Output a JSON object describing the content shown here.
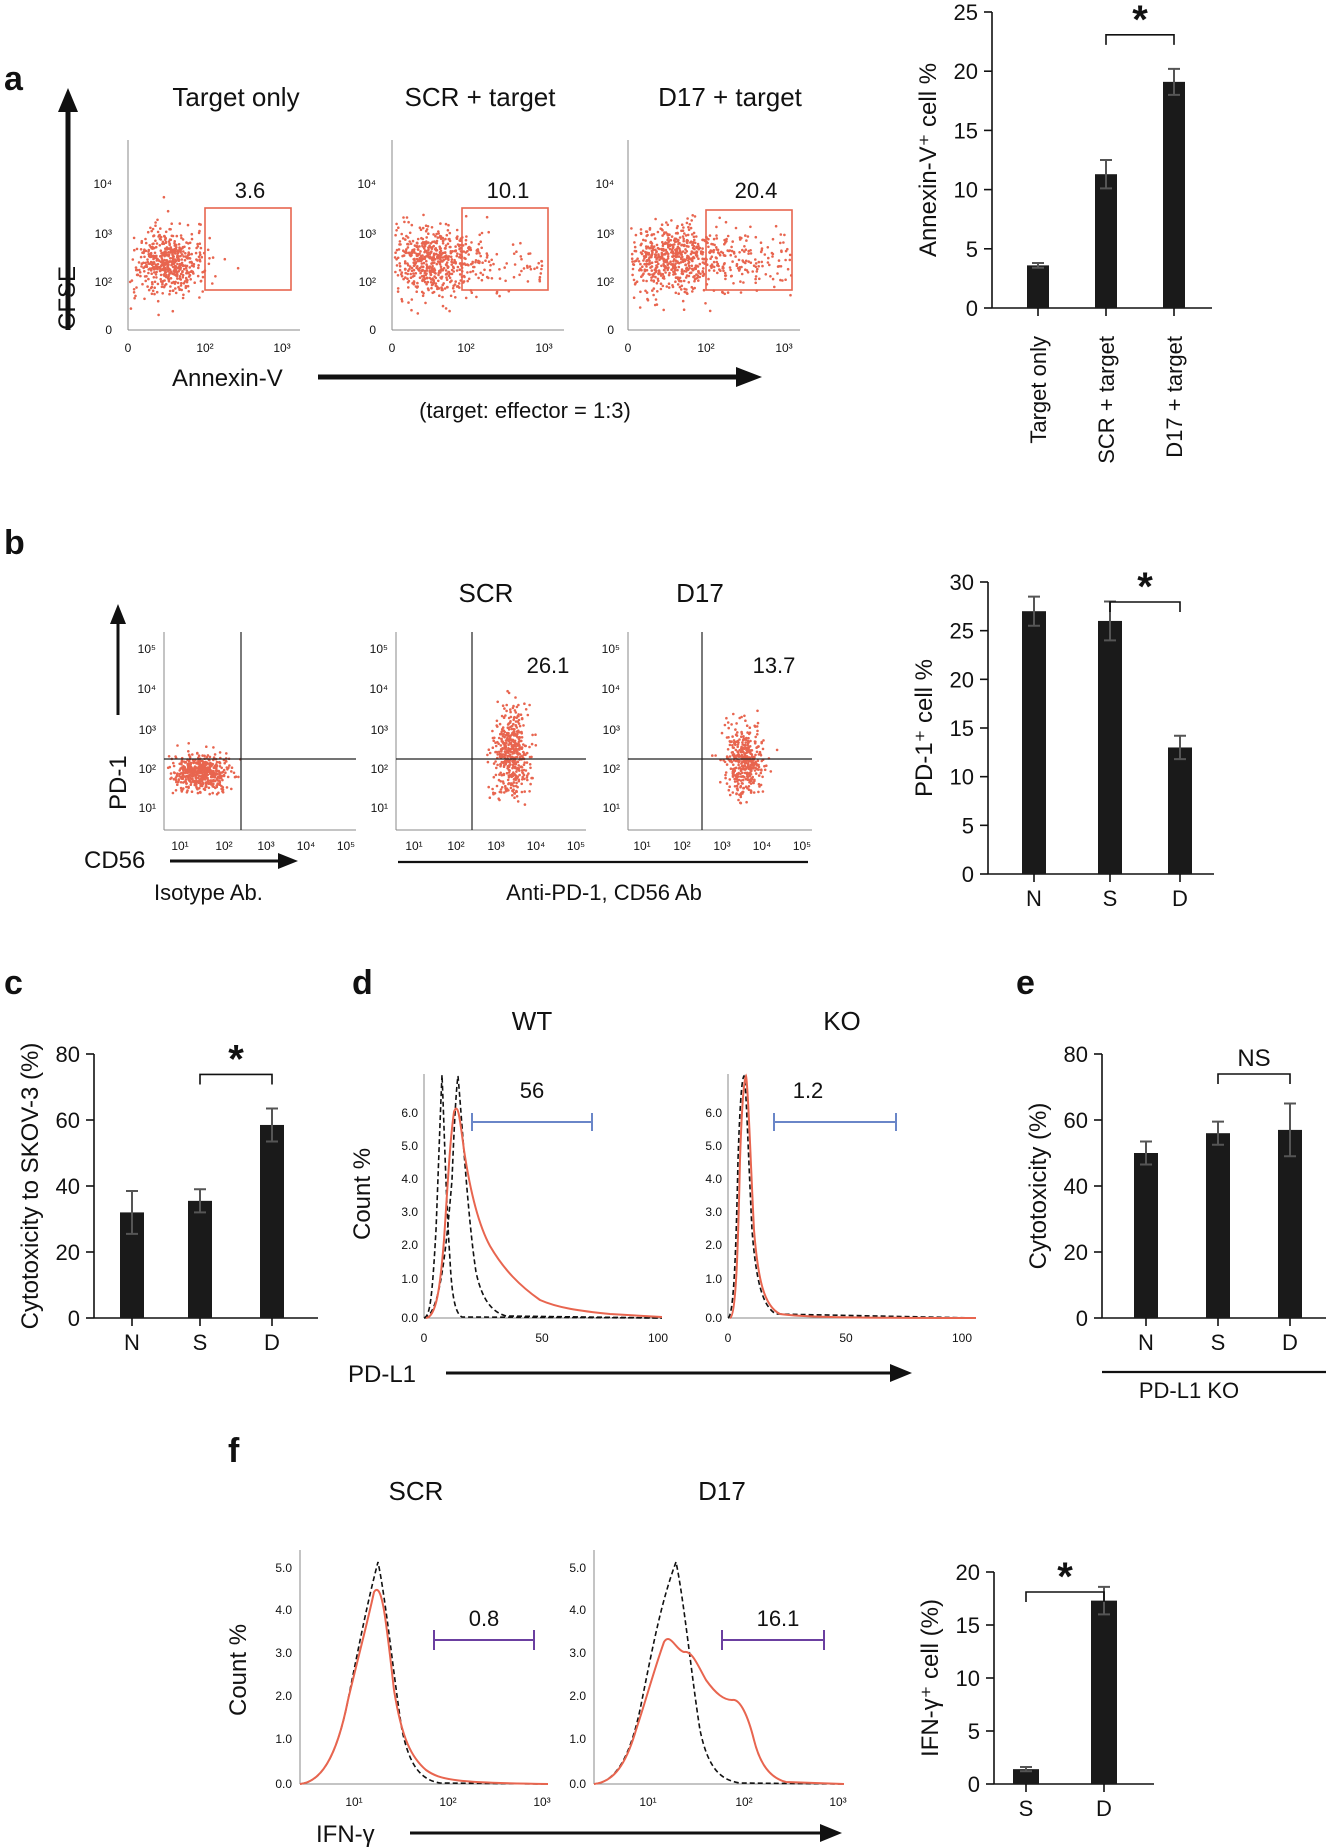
{
  "panels": {
    "a": {
      "letter": "a",
      "titles": [
        "Target only",
        "SCR + target",
        "D17 + target"
      ],
      "gate_values": [
        "3.6",
        "10.1",
        "20.4"
      ],
      "y_axis_label": "CFSE",
      "x_axis_label": "Annexin-V",
      "ratio_note": "(target: effector = 1:3)",
      "y_ticks": [
        "10⁴",
        "10³",
        "10²",
        "0"
      ],
      "x_ticks": [
        "0",
        "10²",
        "10³"
      ]
    },
    "b": {
      "letter": "b",
      "titles": [
        "SCR",
        "D17"
      ],
      "quadrant_values": [
        "26.1",
        "13.7"
      ],
      "y_axis_label": "PD-1",
      "x_axis_label": "CD56",
      "isotype_label": "Isotype Ab.",
      "antibody_label": "Anti-PD-1, CD56 Ab",
      "y_ticks": [
        "10⁵",
        "10⁴",
        "10³",
        "10²",
        "10¹"
      ],
      "x_ticks": [
        "10¹",
        "10²",
        "10³",
        "10⁴",
        "10⁵"
      ]
    },
    "c": {
      "letter": "c"
    },
    "d": {
      "letter": "d",
      "titles": [
        "WT",
        "KO"
      ],
      "gate_values": [
        "56",
        "1.2"
      ],
      "y_axis_label": "Count %",
      "x_axis_label": "PD-L1",
      "y_ticks": [
        "6.0",
        "5.0",
        "4.0",
        "3.0",
        "2.0",
        "1.0",
        "0.0"
      ],
      "x_ticks": [
        "0",
        "50",
        "100"
      ]
    },
    "e": {
      "letter": "e",
      "group_label": "PD-L1 KO"
    },
    "f": {
      "letter": "f",
      "titles": [
        "SCR",
        "D17"
      ],
      "gate_values": [
        "0.8",
        "16.1"
      ],
      "y_axis_label": "Count %",
      "x_axis_label": "IFN-γ",
      "y_ticks": [
        "5.0",
        "4.0",
        "3.0",
        "2.0",
        "1.0",
        "0.0"
      ],
      "x_ticks": [
        "10¹",
        "10²",
        "10³"
      ]
    }
  },
  "chart_data": [
    {
      "id": "a_bar",
      "type": "bar",
      "categories": [
        "Target only",
        "SCR + target",
        "D17 + target"
      ],
      "values": [
        3.6,
        11.3,
        19.1
      ],
      "errors": [
        0.2,
        1.2,
        1.1
      ],
      "ylabel": "Annexin-V⁺ cell %",
      "ylim": [
        0,
        25
      ],
      "yticks": [
        0,
        5,
        10,
        15,
        20,
        25
      ],
      "significance": {
        "from": 1,
        "to": 2,
        "label": "*"
      }
    },
    {
      "id": "b_bar",
      "type": "bar",
      "categories": [
        "N",
        "S",
        "D"
      ],
      "values": [
        27,
        26,
        13
      ],
      "errors": [
        1.5,
        2.0,
        1.2
      ],
      "ylabel": "PD-1⁺ cell %",
      "ylim": [
        0,
        30
      ],
      "yticks": [
        0,
        5,
        10,
        15,
        20,
        25,
        30
      ],
      "significance": {
        "from": 1,
        "to": 2,
        "label": "*"
      }
    },
    {
      "id": "c_bar",
      "type": "bar",
      "categories": [
        "N",
        "S",
        "D"
      ],
      "values": [
        32,
        35.5,
        58.5
      ],
      "errors": [
        6.5,
        3.5,
        5
      ],
      "ylabel": "Cytotoxicity to SKOV-3 (%)",
      "ylim": [
        0,
        80
      ],
      "yticks": [
        0,
        20,
        40,
        60,
        80
      ],
      "significance": {
        "from": 1,
        "to": 2,
        "label": "*"
      }
    },
    {
      "id": "e_bar",
      "type": "bar",
      "categories": [
        "N",
        "S",
        "D"
      ],
      "values": [
        50,
        56,
        57
      ],
      "errors": [
        3.5,
        3.5,
        8
      ],
      "ylabel": "Cytotoxicity (%)",
      "ylim": [
        0,
        80
      ],
      "yticks": [
        0,
        20,
        40,
        60,
        80
      ],
      "significance": {
        "from": 1,
        "to": 2,
        "label": "NS"
      }
    },
    {
      "id": "f_bar",
      "type": "bar",
      "categories": [
        "S",
        "D"
      ],
      "values": [
        1.4,
        17.3
      ],
      "errors": [
        0.2,
        1.3
      ],
      "ylabel": "IFN-γ⁺ cell (%)",
      "ylim": [
        0,
        20
      ],
      "yticks": [
        0,
        5,
        10,
        15,
        20
      ],
      "significance": {
        "from": 0,
        "to": 1,
        "label": "*"
      }
    }
  ]
}
